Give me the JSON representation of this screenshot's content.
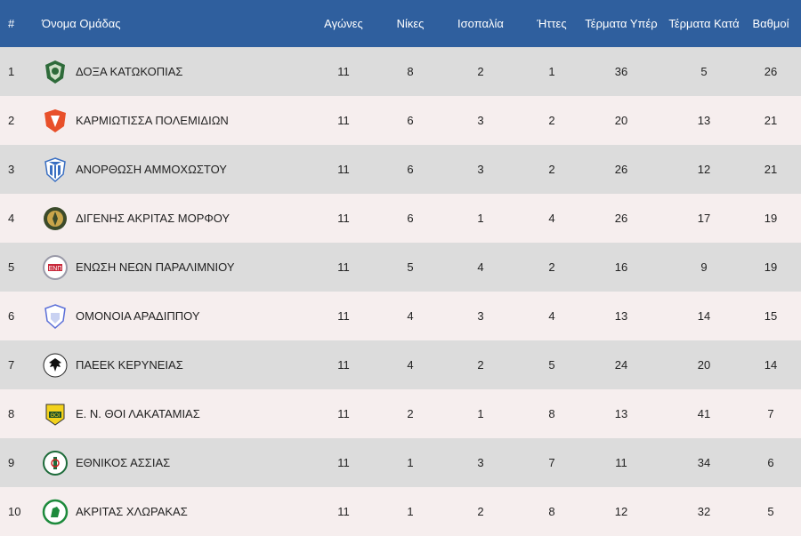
{
  "header": {
    "rank": "#",
    "team": "Όνομα Ομάδας",
    "played": "Αγώνες",
    "wins": "Νίκες",
    "draws": "Ισοπαλία",
    "losses": "Ήττες",
    "goals_for": "Τέρματα Υπέρ",
    "goals_against": "Τέρματα Κατά",
    "points": "Βαθμοί"
  },
  "colors": {
    "header_bg": "#2f5f9e",
    "row_odd": "#dcdcdc",
    "row_even": "#f6eeee"
  },
  "rows": [
    {
      "rank": "1",
      "team": "ΔΟΞΑ ΚΑΤΩΚΟΠΙΑΣ",
      "played": "11",
      "wins": "8",
      "draws": "2",
      "losses": "1",
      "goals_for": "36",
      "goals_against": "5",
      "points": "26",
      "logo": "doxa-crest"
    },
    {
      "rank": "2",
      "team": "ΚΑΡΜΙΩΤΙΣΣΑ ΠΟΛΕΜΙΔΙΩΝ",
      "played": "11",
      "wins": "6",
      "draws": "3",
      "losses": "2",
      "goals_for": "20",
      "goals_against": "13",
      "points": "21",
      "logo": "karmiotissa-crest"
    },
    {
      "rank": "3",
      "team": "ΑΝΟΡΘΩΣΗ ΑΜΜΟΧΩΣΤΟΥ",
      "played": "11",
      "wins": "6",
      "draws": "3",
      "losses": "2",
      "goals_for": "26",
      "goals_against": "12",
      "points": "21",
      "logo": "anorthosis-crest"
    },
    {
      "rank": "4",
      "team": "ΔΙΓΕΝΗΣ ΑΚΡΙΤΑΣ ΜΟΡΦΟΥ",
      "played": "11",
      "wins": "6",
      "draws": "1",
      "losses": "4",
      "goals_for": "26",
      "goals_against": "17",
      "points": "19",
      "logo": "digenis-crest"
    },
    {
      "rank": "5",
      "team": "ΕΝΩΣΗ ΝΕΩΝ ΠΑΡΑΛΙΜΝΙΟΥ",
      "played": "11",
      "wins": "5",
      "draws": "4",
      "losses": "2",
      "goals_for": "16",
      "goals_against": "9",
      "points": "19",
      "logo": "enp-crest"
    },
    {
      "rank": "6",
      "team": "ΟΜΟΝΟΙΑ ΑΡΑΔΙΠΠΟΥ",
      "played": "11",
      "wins": "4",
      "draws": "3",
      "losses": "4",
      "goals_for": "13",
      "goals_against": "14",
      "points": "15",
      "logo": "omonoia-crest"
    },
    {
      "rank": "7",
      "team": "ΠΑΕΕΚ ΚΕΡΥΝΕΙΑΣ",
      "played": "11",
      "wins": "4",
      "draws": "2",
      "losses": "5",
      "goals_for": "24",
      "goals_against": "20",
      "points": "14",
      "logo": "paeek-crest"
    },
    {
      "rank": "8",
      "team": "Ε. Ν. ΘΟΙ ΛΑΚΑΤΑΜΙΑΣ",
      "played": "11",
      "wins": "2",
      "draws": "1",
      "losses": "8",
      "goals_for": "13",
      "goals_against": "41",
      "points": "7",
      "logo": "thoi-crest"
    },
    {
      "rank": "9",
      "team": "ΕΘΝΙΚΟΣ ΑΣΣΙΑΣ",
      "played": "11",
      "wins": "1",
      "draws": "3",
      "losses": "7",
      "goals_for": "11",
      "goals_against": "34",
      "points": "6",
      "logo": "ethnikos-crest"
    },
    {
      "rank": "10",
      "team": "ΑΚΡΙΤΑΣ ΧΛΩΡΑΚΑΣ",
      "played": "11",
      "wins": "1",
      "draws": "2",
      "losses": "8",
      "goals_for": "12",
      "goals_against": "32",
      "points": "5",
      "logo": "akritas-crest"
    }
  ]
}
